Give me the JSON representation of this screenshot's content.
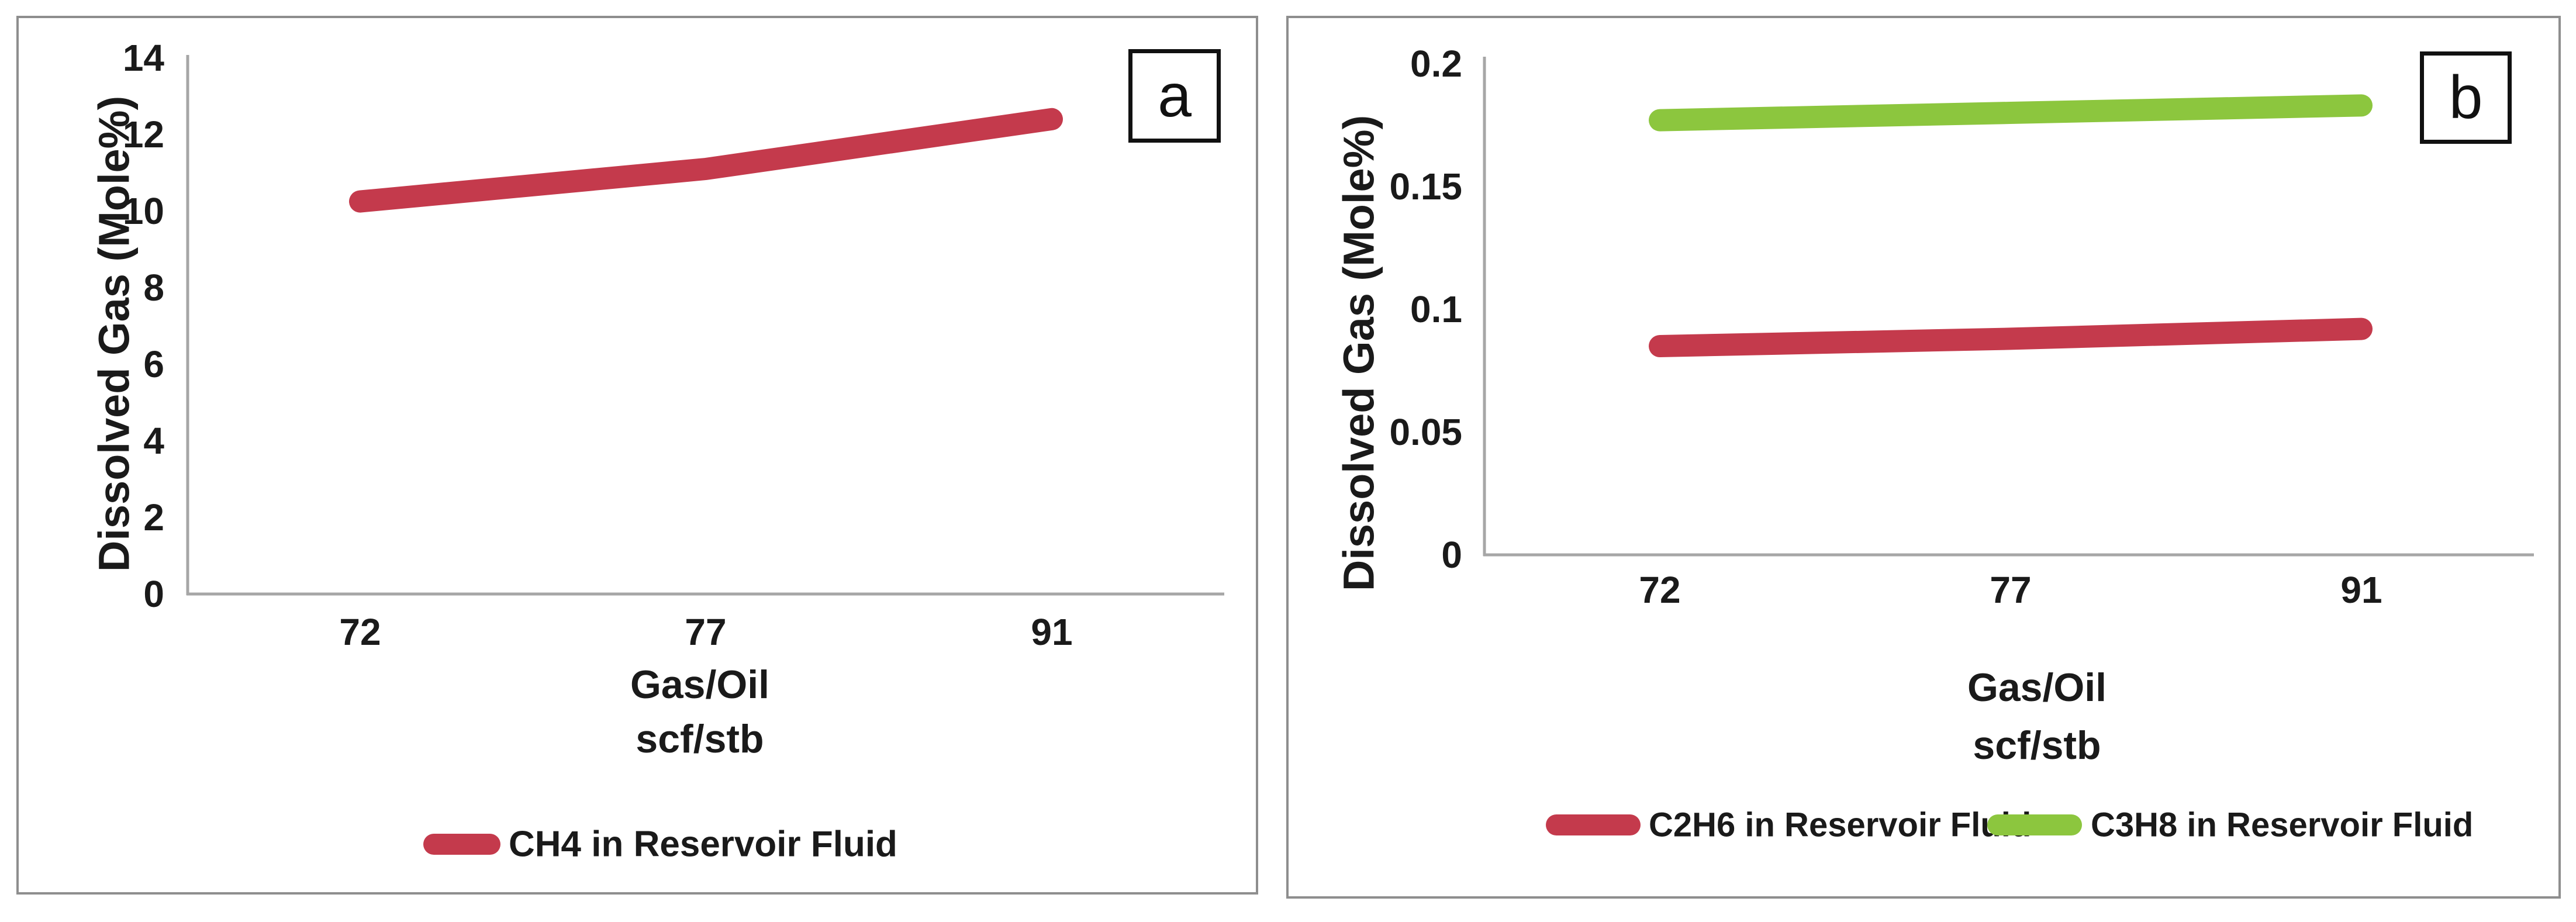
{
  "figure": {
    "background": "#ffffff",
    "panel_border_color": "#8e8e8e",
    "axis_color": "#a6a6a6",
    "text_color": "#1a1a1a",
    "accent_red": "#c43a4c",
    "accent_green": "#8cc63e"
  },
  "chart_data": [
    {
      "type": "line",
      "panel_label": "a",
      "ylabel": "Dissolved Gas (Mole%)",
      "xlabel_lines": [
        "Gas/Oil",
        "scf/stb"
      ],
      "categories": [
        "72",
        "77",
        "91"
      ],
      "x": [
        72,
        77,
        91
      ],
      "ylim": [
        0,
        14
      ],
      "yticks": [
        0,
        2,
        4,
        6,
        8,
        10,
        12,
        14
      ],
      "ytick_labels": [
        "0",
        "2",
        "4",
        "6",
        "8",
        "10",
        "12",
        "14"
      ],
      "grid": false,
      "legend_position": "bottom",
      "series": [
        {
          "name": "CH4 in Reservoir Fluid",
          "color": "#c43a4c",
          "values": [
            10.25,
            11.1,
            12.4
          ]
        }
      ]
    },
    {
      "type": "line",
      "panel_label": "b",
      "ylabel": "Dissolved Gas (Mole%)",
      "xlabel_lines": [
        "Gas/Oil",
        "scf/stb"
      ],
      "categories": [
        "72",
        "77",
        "91"
      ],
      "x": [
        72,
        77,
        91
      ],
      "ylim": [
        0,
        0.2
      ],
      "yticks": [
        0,
        0.05,
        0.1,
        0.15,
        0.2
      ],
      "ytick_labels": [
        "0",
        "0.05",
        "0.1",
        "0.15",
        "0.2"
      ],
      "grid": false,
      "legend_position": "bottom",
      "series": [
        {
          "name": "C2H6  in Reservoir Fluid",
          "color": "#c43a4c",
          "values": [
            0.085,
            0.088,
            0.092
          ]
        },
        {
          "name": "C3H8  in Reservoir Fluid",
          "color": "#8cc63e",
          "values": [
            0.177,
            0.18,
            0.183
          ]
        }
      ]
    }
  ]
}
